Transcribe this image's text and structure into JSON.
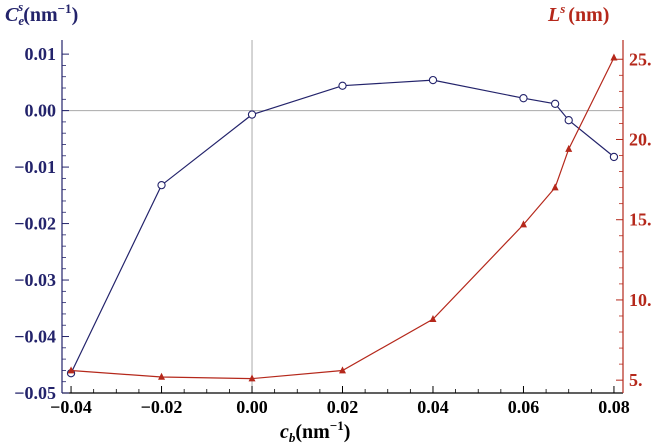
{
  "chart_data": {
    "type": "line",
    "x": [
      -0.04,
      -0.02,
      0.0,
      0.02,
      0.04,
      0.06,
      0.067,
      0.07,
      0.08
    ],
    "x_ticks": [
      "−0.04",
      "−0.02",
      "0.00",
      "0.02",
      "0.04",
      "0.06",
      "0.08"
    ],
    "y_left_ticks": [
      "0.01",
      "0.00",
      "−0.01",
      "−0.02",
      "−0.03",
      "−0.04",
      "−0.05"
    ],
    "y_right_ticks": [
      "5.",
      "10.",
      "15.",
      "20.",
      "25."
    ],
    "xlim": [
      -0.042,
      0.082
    ],
    "ylim_left": [
      -0.05,
      0.0125
    ],
    "ylim_right": [
      4.2,
      26.2
    ],
    "xlabel": {
      "main": "c",
      "sub": "b",
      "unit": "(nm",
      "exp": "−1",
      "close": ")"
    },
    "ylabel_left": {
      "main": "C",
      "sub": "e",
      "sup": "s",
      "unit": "(nm",
      "exp": "−1",
      "close": ")"
    },
    "ylabel_right": {
      "main": "L",
      "sup": "s",
      "unit": "(nm)"
    },
    "series": [
      {
        "axis": "left",
        "marker": "open-circle",
        "color": "#23236b",
        "x": [
          -0.04,
          -0.02,
          0.0,
          0.02,
          0.04,
          0.06,
          0.067,
          0.07,
          0.08
        ],
        "values": [
          -0.0465,
          -0.0132,
          -0.0007,
          0.0044,
          0.0054,
          0.0022,
          0.0012,
          -0.0017,
          -0.0082
        ]
      },
      {
        "axis": "right",
        "marker": "filled-triangle",
        "color": "#b5281b",
        "x": [
          -0.04,
          -0.02,
          0.0,
          0.02,
          0.04,
          0.06,
          0.067,
          0.07,
          0.08
        ],
        "values": [
          5.6,
          5.2,
          5.1,
          5.6,
          8.8,
          14.7,
          17.0,
          19.4,
          25.1
        ]
      }
    ],
    "colors": {
      "left_axis": "#23236b",
      "right_axis": "#b5281b",
      "zero_lines": "#aaaaaa",
      "frame": "#000000"
    },
    "grid": false
  }
}
